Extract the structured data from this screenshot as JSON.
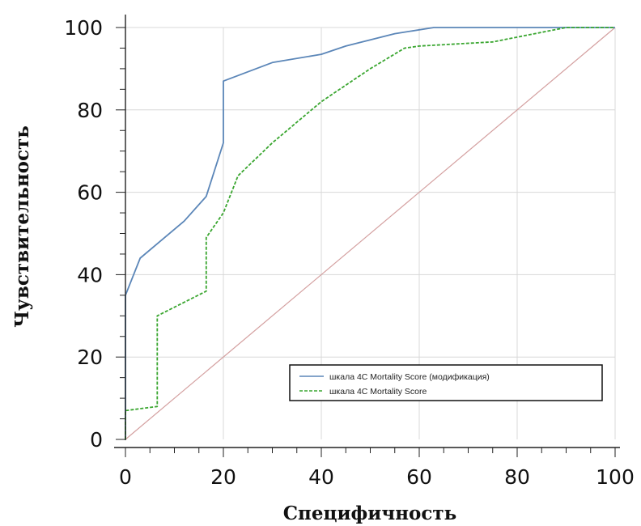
{
  "chart_data": {
    "type": "line",
    "xlabel": "Специфичность",
    "ylabel": "Чувствительность",
    "xlim": [
      0,
      100
    ],
    "ylim": [
      0,
      100
    ],
    "xticks": [
      "0",
      "20",
      "40",
      "60",
      "80",
      "100"
    ],
    "yticks": [
      "0",
      "20",
      "40",
      "60",
      "80",
      "100"
    ],
    "grid": true,
    "legend_position": "lower-right",
    "series": [
      {
        "name": "шкала 4C Mortality Score (модификация)",
        "color": "#5b86b8",
        "style": "solid",
        "x": [
          0,
          0,
          3,
          7,
          12,
          16.5,
          20,
          20,
          30,
          40,
          45,
          55,
          63,
          64,
          100
        ],
        "y": [
          0,
          35,
          44,
          48,
          53,
          59,
          72,
          87,
          91.5,
          93.5,
          95.5,
          98.5,
          100,
          100,
          100
        ]
      },
      {
        "name": "шкала 4C Mortality Score",
        "color": "#3aa630",
        "style": "dashed",
        "x": [
          0,
          0,
          6.5,
          6.5,
          16.5,
          16.5,
          20,
          23,
          30,
          40,
          50,
          57,
          60,
          75,
          90,
          100
        ],
        "y": [
          0,
          7,
          8,
          30,
          36,
          49,
          55,
          64,
          72,
          82,
          90,
          95,
          95.5,
          96.5,
          100,
          100
        ]
      },
      {
        "name": "",
        "color": "#d4a0a0",
        "style": "solid",
        "x": [
          0,
          100
        ],
        "y": [
          0,
          100
        ]
      }
    ]
  }
}
